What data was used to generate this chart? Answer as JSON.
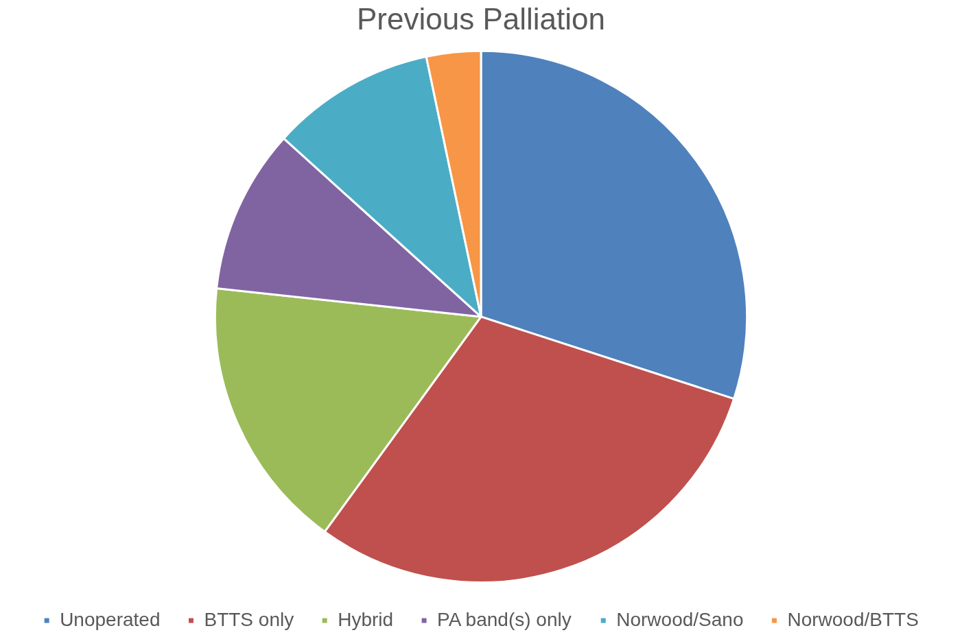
{
  "chart_data": {
    "type": "pie",
    "title": "Previous Palliation",
    "categories": [
      "Unoperated",
      "BTTS only",
      "Hybrid",
      "PA band(s) only",
      "Norwood/Sano",
      "Norwood/BTTS"
    ],
    "values": [
      30,
      30,
      16.7,
      10,
      10,
      3.3
    ],
    "colors": [
      "#4f81bd",
      "#c0504d",
      "#9bbb59",
      "#8064a2",
      "#4bacc6",
      "#f79646"
    ],
    "legend": "bottom"
  }
}
